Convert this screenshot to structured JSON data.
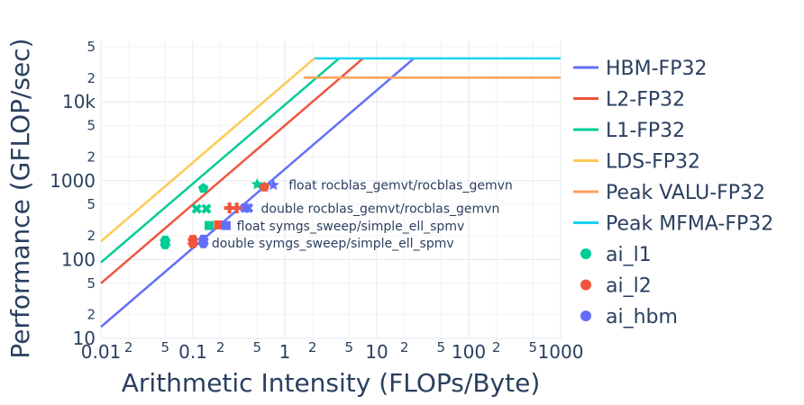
{
  "chart_data": {
    "type": "line",
    "title": "",
    "xlabel": "Arithmetic Intensity (FLOPs/Byte)",
    "ylabel": "Performance (GFLOP/sec)",
    "x_scale": "log",
    "y_scale": "log",
    "xlim": [
      0.01,
      1000
    ],
    "ylim": [
      10,
      60000
    ],
    "grid": true,
    "legend_placement": "right",
    "x_major_ticks": [
      {
        "v": 0.01,
        "label": "0.01"
      },
      {
        "v": 0.1,
        "label": "0.1"
      },
      {
        "v": 1,
        "label": "1"
      },
      {
        "v": 10,
        "label": "10"
      },
      {
        "v": 100,
        "label": "100"
      },
      {
        "v": 1000,
        "label": "1000"
      }
    ],
    "x_minor_ticks": [
      {
        "v": 0.02,
        "label": "2"
      },
      {
        "v": 0.05,
        "label": "5"
      },
      {
        "v": 0.2,
        "label": "2"
      },
      {
        "v": 0.5,
        "label": "5"
      },
      {
        "v": 2,
        "label": "2"
      },
      {
        "v": 5,
        "label": "5"
      },
      {
        "v": 20,
        "label": "2"
      },
      {
        "v": 50,
        "label": "5"
      },
      {
        "v": 200,
        "label": "2"
      },
      {
        "v": 500,
        "label": "5"
      }
    ],
    "y_major_ticks": [
      {
        "v": 10,
        "label": "10"
      },
      {
        "v": 100,
        "label": "100"
      },
      {
        "v": 1000,
        "label": "1000"
      },
      {
        "v": 10000,
        "label": "10k"
      }
    ],
    "y_minor_ticks": [
      {
        "v": 20,
        "label": "2"
      },
      {
        "v": 50,
        "label": "5"
      },
      {
        "v": 200,
        "label": "2"
      },
      {
        "v": 500,
        "label": "5"
      },
      {
        "v": 2000,
        "label": "2"
      },
      {
        "v": 5000,
        "label": "5"
      },
      {
        "v": 20000,
        "label": "2"
      },
      {
        "v": 50000,
        "label": "5"
      }
    ],
    "series": [
      {
        "name": "HBM-FP32",
        "kind": "line",
        "color": "#636efa",
        "x": [
          0.01,
          25.4
        ],
        "y": [
          14,
          35600
        ]
      },
      {
        "name": "L2-FP32",
        "kind": "line",
        "color": "#ef553b",
        "x": [
          0.01,
          7.1
        ],
        "y": [
          50,
          35600
        ]
      },
      {
        "name": "L1-FP32",
        "kind": "line",
        "color": "#00cc96",
        "x": [
          0.01,
          3.9
        ],
        "y": [
          92,
          35600
        ]
      },
      {
        "name": "LDS-FP32",
        "kind": "line",
        "color": "#fecb52",
        "x": [
          0.01,
          2.1
        ],
        "y": [
          170,
          35600
        ]
      },
      {
        "name": "Peak VALU-FP32",
        "kind": "line",
        "color": "#ffa15a",
        "x": [
          1.6,
          1000
        ],
        "y": [
          20300,
          20300
        ]
      },
      {
        "name": "Peak MFMA-FP32",
        "kind": "line",
        "color": "#19d3f3",
        "x": [
          2.1,
          1000
        ],
        "y": [
          35600,
          35600
        ]
      },
      {
        "name": "ai_l1",
        "kind": "markers",
        "color": "#00cc96",
        "points": [
          {
            "x": 0.13,
            "y": 800,
            "symbol": "pentagon"
          },
          {
            "x": 0.5,
            "y": 900,
            "symbol": "star"
          },
          {
            "x": 0.11,
            "y": 440,
            "symbol": "x"
          },
          {
            "x": 0.14,
            "y": 440,
            "symbol": "x"
          },
          {
            "x": 0.15,
            "y": 270,
            "symbol": "square"
          },
          {
            "x": 0.05,
            "y": 155,
            "symbol": "hexagon"
          },
          {
            "x": 0.05,
            "y": 175,
            "symbol": "hexagon"
          }
        ]
      },
      {
        "name": "ai_l2",
        "kind": "markers",
        "color": "#ef553b",
        "points": [
          {
            "x": 0.6,
            "y": 830,
            "symbol": "pentagon"
          },
          {
            "x": 0.25,
            "y": 450,
            "symbol": "cross"
          },
          {
            "x": 0.3,
            "y": 450,
            "symbol": "cross"
          },
          {
            "x": 0.19,
            "y": 275,
            "symbol": "square"
          },
          {
            "x": 0.1,
            "y": 160,
            "symbol": "hexagon"
          },
          {
            "x": 0.1,
            "y": 180,
            "symbol": "hexagon"
          }
        ]
      },
      {
        "name": "ai_hbm",
        "kind": "markers",
        "color": "#636efa",
        "points": [
          {
            "x": 0.75,
            "y": 880,
            "symbol": "star"
          },
          {
            "x": 0.37,
            "y": 450,
            "symbol": "x"
          },
          {
            "x": 0.4,
            "y": 450,
            "symbol": "x"
          },
          {
            "x": 0.23,
            "y": 270,
            "symbol": "square"
          },
          {
            "x": 0.13,
            "y": 160,
            "symbol": "hexagon"
          },
          {
            "x": 0.13,
            "y": 180,
            "symbol": "hexagon"
          }
        ]
      }
    ],
    "annotations": [
      {
        "text": "float rocblas_gemvt/rocblas_gemvn",
        "x": 1.1,
        "y": 880
      },
      {
        "text": "double rocblas_gemvt/rocblas_gemvn",
        "x": 0.55,
        "y": 445
      },
      {
        "text": "float symgs_sweep/simple_ell_spmv",
        "x": 0.3,
        "y": 268
      },
      {
        "text": "double symgs_sweep/simple_ell_spmv",
        "x": 0.16,
        "y": 162
      }
    ]
  }
}
